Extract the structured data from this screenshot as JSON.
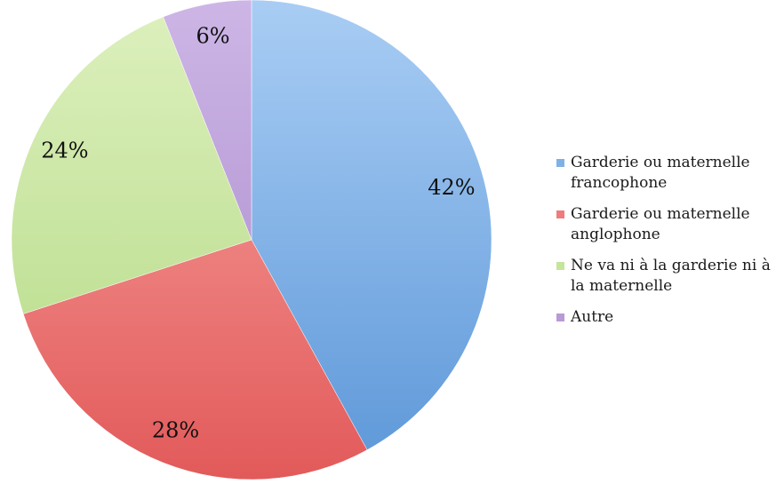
{
  "chart_data": {
    "type": "pie",
    "title": "",
    "legend_position": "right",
    "slices": [
      {
        "label": "Garderie ou maternelle francophone",
        "value": 42,
        "data_label": "42%",
        "color": "#7FB1E8",
        "color_light": "#A9CDF4",
        "color_dark": "#5C97D8"
      },
      {
        "label": "Garderie ou maternelle anglophone",
        "value": 28,
        "data_label": "28%",
        "color": "#EE7C7C",
        "color_light": "#F8A7A3",
        "color_dark": "#E25A5A"
      },
      {
        "label": "Ne va ni à la garderie ni à la maternelle",
        "value": 24,
        "data_label": "24%",
        "color": "#C6E59C",
        "color_light": "#DDF0BE",
        "color_dark": "#B2D982"
      },
      {
        "label": "Autre",
        "value": 6,
        "data_label": "6%",
        "color": "#B89AD6",
        "color_light": "#CDB6E6",
        "color_dark": "#A585C8"
      }
    ]
  }
}
